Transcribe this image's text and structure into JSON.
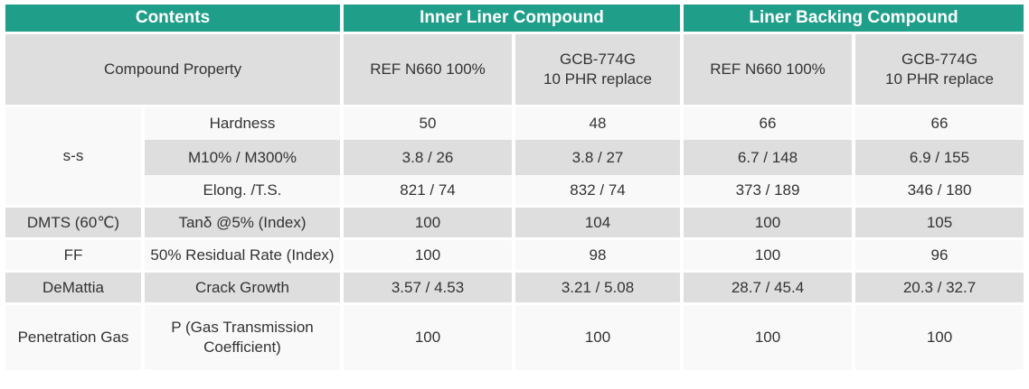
{
  "header": {
    "contents": "Contents",
    "inner_liner": "Inner Liner Compound",
    "liner_backing": "Liner Backing Compound"
  },
  "subheader": {
    "compound_property": "Compound Property",
    "inner_ref": "REF N660 100%",
    "inner_gcb_line1": "GCB-774G",
    "inner_gcb_line2": "10 PHR replace",
    "back_ref": "REF N660 100%",
    "back_gcb_line1": "GCB-774G",
    "back_gcb_line2": "10 PHR replace"
  },
  "rows": [
    {
      "group": "s-s",
      "property": "Hardness",
      "v1": "50",
      "v2": "48",
      "v3": "66",
      "v4": "66"
    },
    {
      "group": "",
      "property": "M10% / M300%",
      "v1": "3.8 / 26",
      "v2": "3.8 / 27",
      "v3": "6.7 / 148",
      "v4": "6.9 / 155"
    },
    {
      "group": "",
      "property": "Elong. /T.S.",
      "v1": "821 / 74",
      "v2": "832 / 74",
      "v3": "373 / 189",
      "v4": "346 / 180"
    },
    {
      "group": "DMTS (60℃)",
      "property": "Tanδ @5% (Index)",
      "v1": "100",
      "v2": "104",
      "v3": "100",
      "v4": "105"
    },
    {
      "group": "FF",
      "property": "50% Residual Rate (Index)",
      "v1": "100",
      "v2": "98",
      "v3": "100",
      "v4": "96"
    },
    {
      "group": "DeMattia",
      "property": "Crack Growth",
      "v1": "3.57 / 4.53",
      "v2": "3.21 / 5.08",
      "v3": "28.7 / 45.4",
      "v4": "20.3 / 32.7"
    },
    {
      "group": "Penetration Gas",
      "property_line1": "P (Gas Transmission",
      "property_line2": "Coefficient)",
      "v1": "100",
      "v2": "100",
      "v3": "100",
      "v4": "100"
    }
  ]
}
